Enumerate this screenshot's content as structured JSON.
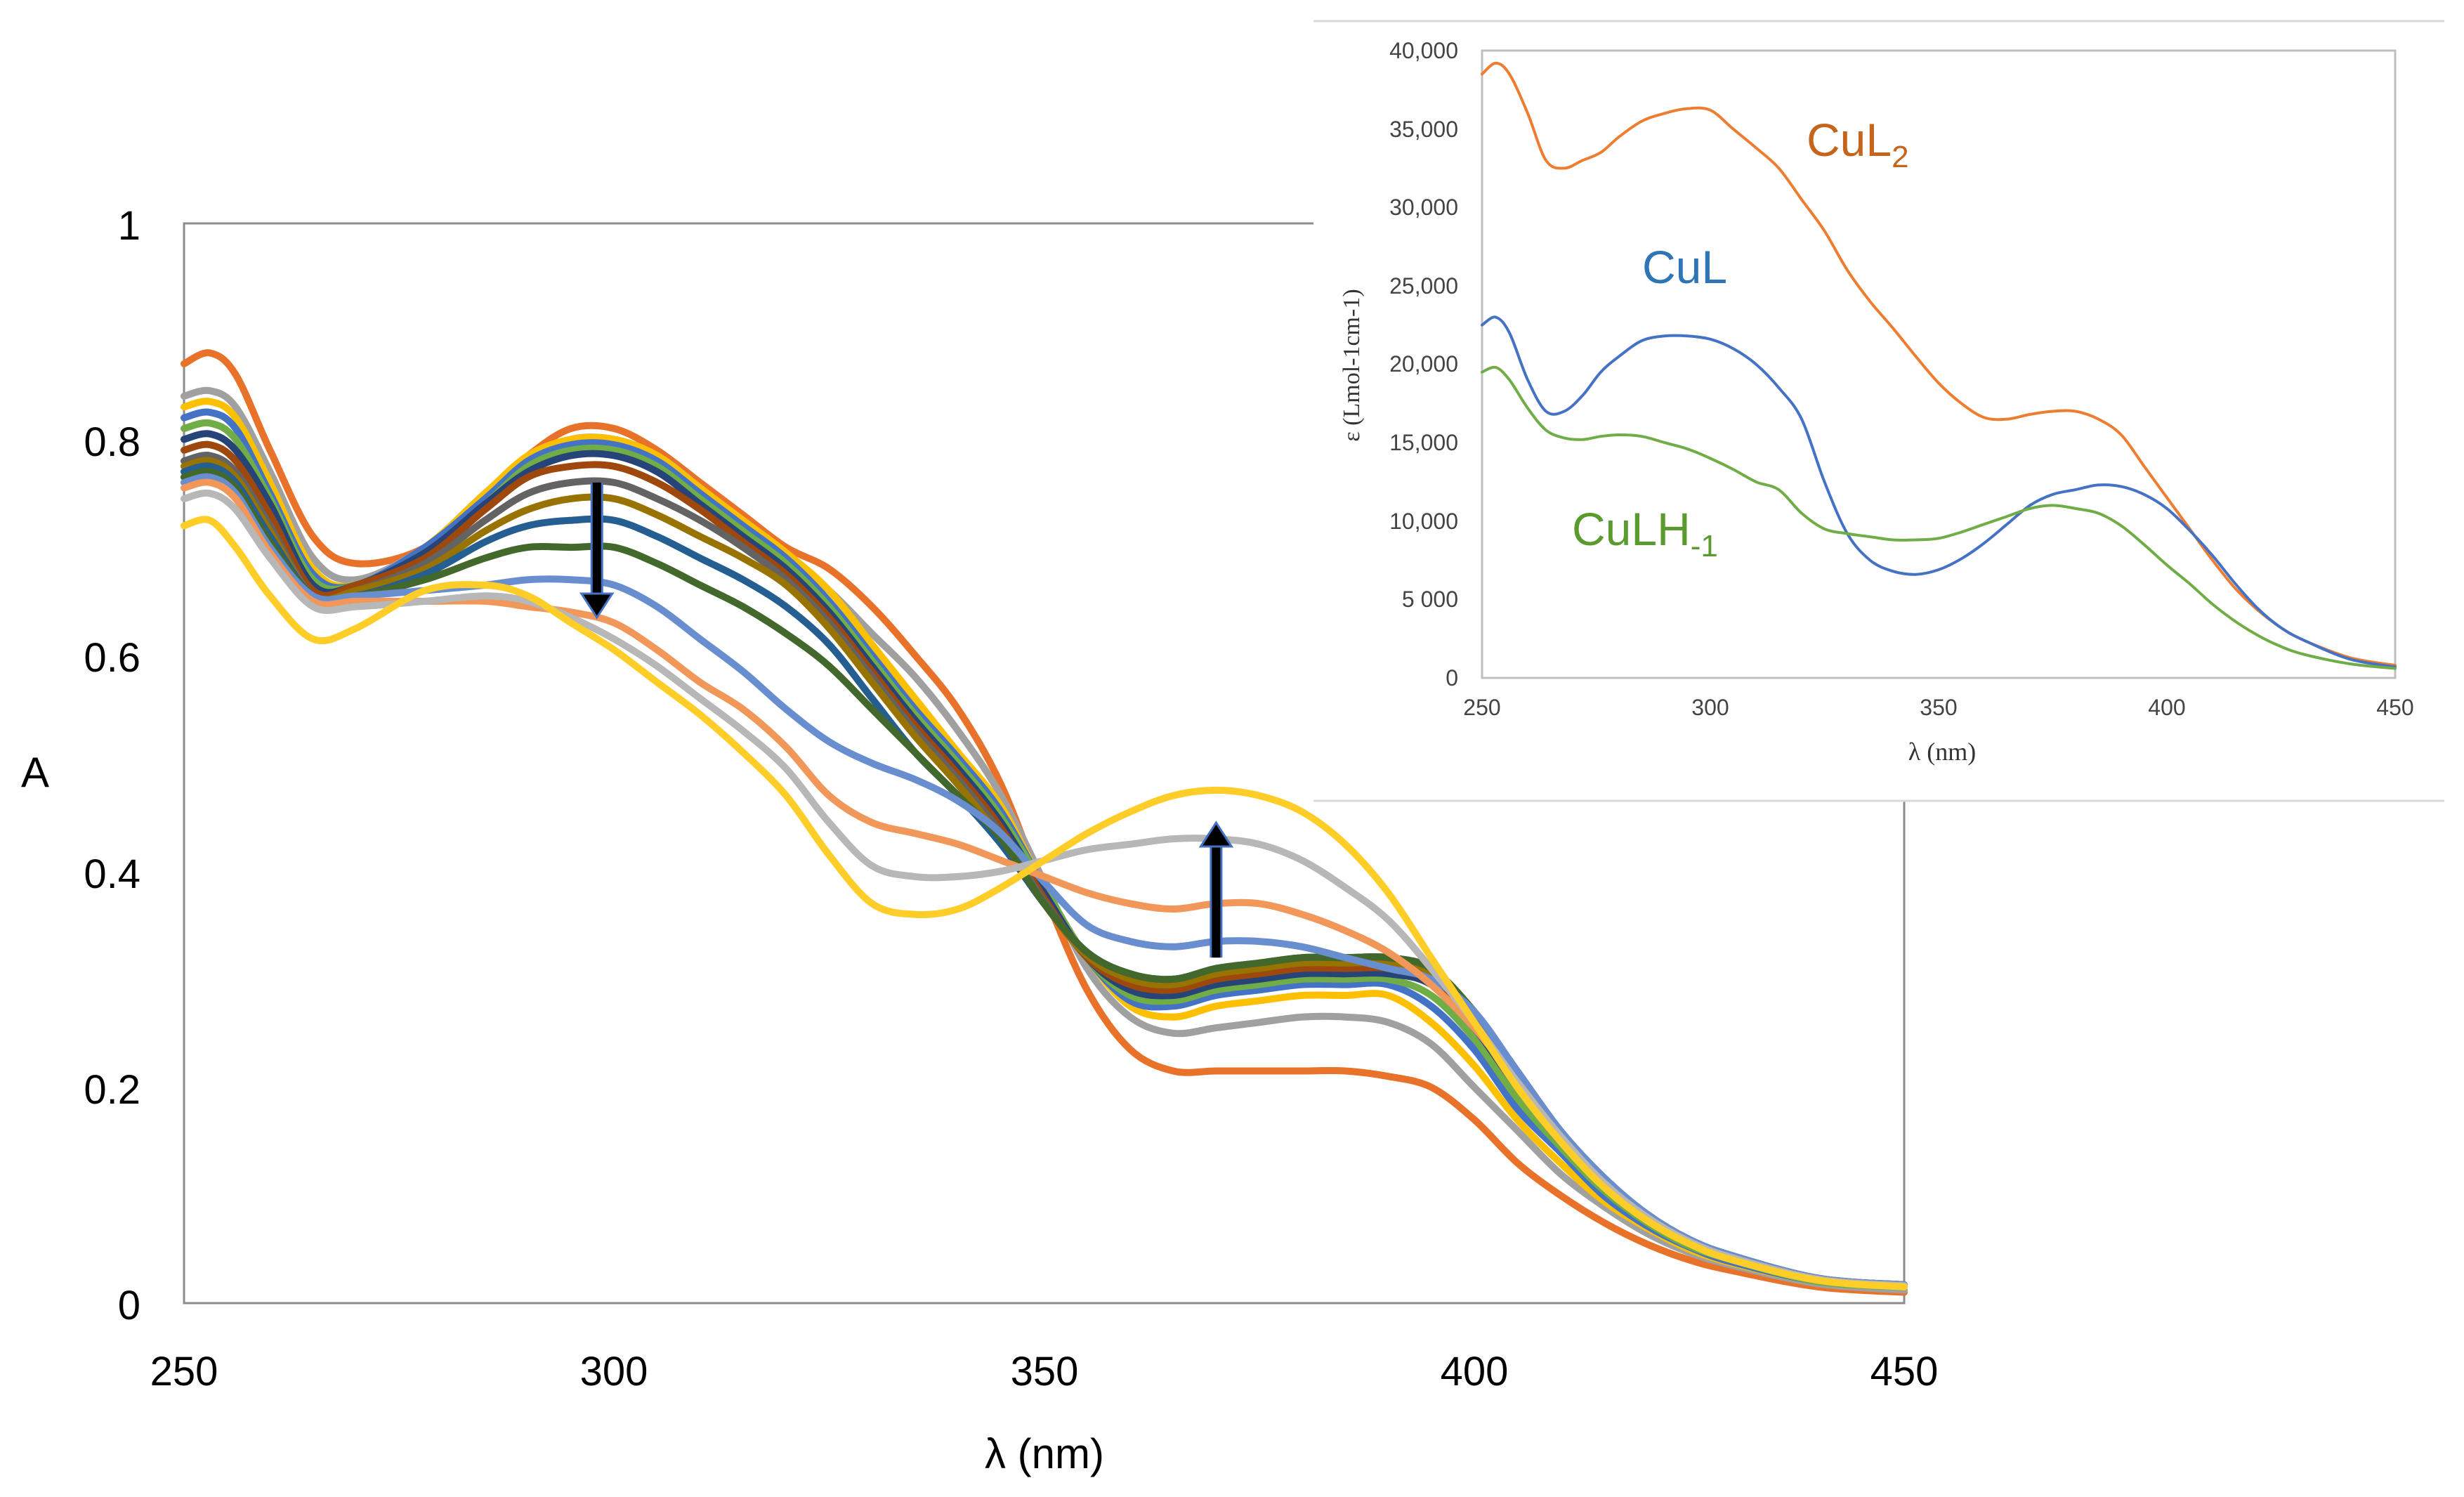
{
  "chart_data": [
    {
      "type": "line",
      "name": "main-titration",
      "title": "",
      "xlabel": "λ (nm)",
      "ylabel": "A",
      "xlim": [
        250,
        450
      ],
      "ylim": [
        0,
        1
      ],
      "x_ticks": [
        "250",
        "300",
        "350",
        "400",
        "450"
      ],
      "y_ticks": [
        "0",
        "0.2",
        "0.4",
        "0.6",
        "0.8",
        "1"
      ],
      "x": [
        250,
        253,
        256,
        260,
        265,
        270,
        278,
        285,
        290,
        295,
        300,
        305,
        310,
        315,
        320,
        325,
        330,
        335,
        340,
        345,
        350,
        355,
        360,
        365,
        370,
        375,
        380,
        385,
        390,
        395,
        400,
        405,
        410,
        415,
        420,
        425,
        430,
        440,
        450
      ],
      "series": [
        {
          "name": "s1",
          "color": "#e8722a",
          "values": [
            0.87,
            0.88,
            0.86,
            0.79,
            0.71,
            0.685,
            0.7,
            0.75,
            0.785,
            0.81,
            0.81,
            0.79,
            0.76,
            0.73,
            0.7,
            0.68,
            0.645,
            0.6,
            0.55,
            0.48,
            0.38,
            0.29,
            0.235,
            0.215,
            0.215,
            0.215,
            0.215,
            0.215,
            0.21,
            0.2,
            0.17,
            0.13,
            0.1,
            0.075,
            0.055,
            0.04,
            0.03,
            0.015,
            0.01
          ]
        },
        {
          "name": "s2",
          "color": "#a0a0a0",
          "values": [
            0.84,
            0.845,
            0.83,
            0.77,
            0.69,
            0.67,
            0.7,
            0.75,
            0.78,
            0.8,
            0.8,
            0.785,
            0.755,
            0.72,
            0.69,
            0.66,
            0.62,
            0.58,
            0.53,
            0.47,
            0.39,
            0.31,
            0.265,
            0.25,
            0.255,
            0.26,
            0.265,
            0.265,
            0.26,
            0.24,
            0.2,
            0.16,
            0.12,
            0.09,
            0.065,
            0.047,
            0.035,
            0.018,
            0.012
          ]
        },
        {
          "name": "s3",
          "color": "#fcc000",
          "values": [
            0.83,
            0.835,
            0.82,
            0.76,
            0.68,
            0.665,
            0.7,
            0.75,
            0.785,
            0.8,
            0.8,
            0.785,
            0.755,
            0.725,
            0.695,
            0.66,
            0.61,
            0.56,
            0.51,
            0.46,
            0.385,
            0.32,
            0.275,
            0.265,
            0.275,
            0.28,
            0.285,
            0.285,
            0.285,
            0.26,
            0.22,
            0.17,
            0.13,
            0.095,
            0.07,
            0.05,
            0.037,
            0.02,
            0.015
          ]
        },
        {
          "name": "s4",
          "color": "#4472c4",
          "values": [
            0.82,
            0.825,
            0.81,
            0.75,
            0.675,
            0.665,
            0.7,
            0.745,
            0.78,
            0.795,
            0.795,
            0.78,
            0.75,
            0.72,
            0.69,
            0.65,
            0.6,
            0.55,
            0.505,
            0.455,
            0.385,
            0.32,
            0.28,
            0.275,
            0.285,
            0.29,
            0.295,
            0.295,
            0.295,
            0.275,
            0.235,
            0.18,
            0.14,
            0.1,
            0.072,
            0.052,
            0.038,
            0.02,
            0.015
          ]
        },
        {
          "name": "s5",
          "color": "#70ad47",
          "values": [
            0.81,
            0.815,
            0.8,
            0.745,
            0.67,
            0.665,
            0.695,
            0.74,
            0.775,
            0.79,
            0.79,
            0.775,
            0.745,
            0.715,
            0.685,
            0.645,
            0.595,
            0.545,
            0.5,
            0.45,
            0.385,
            0.32,
            0.285,
            0.28,
            0.29,
            0.295,
            0.3,
            0.3,
            0.3,
            0.285,
            0.245,
            0.19,
            0.145,
            0.105,
            0.075,
            0.053,
            0.04,
            0.02,
            0.015
          ]
        },
        {
          "name": "s6",
          "color": "#264478",
          "values": [
            0.8,
            0.805,
            0.79,
            0.74,
            0.665,
            0.665,
            0.695,
            0.74,
            0.77,
            0.785,
            0.785,
            0.77,
            0.74,
            0.71,
            0.68,
            0.64,
            0.59,
            0.54,
            0.495,
            0.445,
            0.38,
            0.32,
            0.29,
            0.285,
            0.295,
            0.3,
            0.305,
            0.305,
            0.305,
            0.295,
            0.255,
            0.2,
            0.15,
            0.11,
            0.078,
            0.055,
            0.041,
            0.021,
            0.016
          ]
        },
        {
          "name": "s7",
          "color": "#9e480e",
          "values": [
            0.79,
            0.795,
            0.78,
            0.73,
            0.66,
            0.665,
            0.69,
            0.735,
            0.765,
            0.775,
            0.775,
            0.76,
            0.735,
            0.705,
            0.675,
            0.635,
            0.585,
            0.535,
            0.49,
            0.44,
            0.375,
            0.32,
            0.295,
            0.29,
            0.3,
            0.305,
            0.31,
            0.31,
            0.31,
            0.3,
            0.26,
            0.205,
            0.155,
            0.112,
            0.08,
            0.057,
            0.042,
            0.022,
            0.016
          ]
        },
        {
          "name": "s8",
          "color": "#636363",
          "values": [
            0.78,
            0.785,
            0.77,
            0.72,
            0.655,
            0.66,
            0.685,
            0.725,
            0.75,
            0.76,
            0.76,
            0.745,
            0.725,
            0.7,
            0.67,
            0.63,
            0.58,
            0.53,
            0.485,
            0.435,
            0.372,
            0.322,
            0.3,
            0.295,
            0.305,
            0.31,
            0.315,
            0.315,
            0.315,
            0.305,
            0.265,
            0.21,
            0.158,
            0.115,
            0.082,
            0.058,
            0.043,
            0.022,
            0.016
          ]
        },
        {
          "name": "s9",
          "color": "#997300",
          "values": [
            0.775,
            0.78,
            0.765,
            0.715,
            0.655,
            0.66,
            0.68,
            0.715,
            0.735,
            0.745,
            0.745,
            0.73,
            0.71,
            0.69,
            0.665,
            0.625,
            0.575,
            0.525,
            0.48,
            0.43,
            0.37,
            0.322,
            0.3,
            0.295,
            0.305,
            0.31,
            0.315,
            0.315,
            0.315,
            0.305,
            0.265,
            0.21,
            0.158,
            0.115,
            0.082,
            0.058,
            0.043,
            0.022,
            0.016
          ]
        },
        {
          "name": "s10",
          "color": "#255e91",
          "values": [
            0.77,
            0.775,
            0.76,
            0.71,
            0.655,
            0.655,
            0.675,
            0.705,
            0.72,
            0.725,
            0.725,
            0.71,
            0.69,
            0.67,
            0.645,
            0.61,
            0.56,
            0.51,
            0.47,
            0.425,
            0.37,
            0.325,
            0.305,
            0.3,
            0.31,
            0.315,
            0.32,
            0.32,
            0.32,
            0.31,
            0.27,
            0.215,
            0.16,
            0.117,
            0.083,
            0.059,
            0.044,
            0.023,
            0.017
          ]
        },
        {
          "name": "s11",
          "color": "#43682b",
          "values": [
            0.765,
            0.77,
            0.755,
            0.705,
            0.655,
            0.655,
            0.67,
            0.69,
            0.7,
            0.7,
            0.7,
            0.685,
            0.665,
            0.645,
            0.62,
            0.59,
            0.55,
            0.51,
            0.47,
            0.43,
            0.37,
            0.325,
            0.305,
            0.3,
            0.31,
            0.315,
            0.32,
            0.32,
            0.32,
            0.31,
            0.27,
            0.215,
            0.16,
            0.117,
            0.083,
            0.059,
            0.044,
            0.023,
            0.017
          ]
        },
        {
          "name": "s12",
          "color": "#698ed0",
          "values": [
            0.76,
            0.765,
            0.75,
            0.7,
            0.655,
            0.655,
            0.66,
            0.665,
            0.67,
            0.67,
            0.665,
            0.645,
            0.615,
            0.585,
            0.55,
            0.52,
            0.5,
            0.485,
            0.465,
            0.435,
            0.39,
            0.35,
            0.335,
            0.33,
            0.335,
            0.335,
            0.33,
            0.32,
            0.31,
            0.3,
            0.27,
            0.215,
            0.16,
            0.117,
            0.083,
            0.059,
            0.044,
            0.023,
            0.017
          ]
        },
        {
          "name": "s13",
          "color": "#f1975a",
          "values": [
            0.755,
            0.76,
            0.745,
            0.695,
            0.65,
            0.65,
            0.65,
            0.65,
            0.645,
            0.64,
            0.63,
            0.605,
            0.575,
            0.55,
            0.515,
            0.47,
            0.445,
            0.435,
            0.425,
            0.41,
            0.395,
            0.38,
            0.37,
            0.365,
            0.37,
            0.37,
            0.36,
            0.345,
            0.325,
            0.295,
            0.255,
            0.205,
            0.155,
            0.112,
            0.08,
            0.057,
            0.042,
            0.022,
            0.016
          ]
        },
        {
          "name": "s14",
          "color": "#b7b7b7",
          "values": [
            0.745,
            0.75,
            0.735,
            0.69,
            0.645,
            0.645,
            0.65,
            0.655,
            0.65,
            0.635,
            0.615,
            0.59,
            0.56,
            0.53,
            0.495,
            0.445,
            0.405,
            0.395,
            0.395,
            0.4,
            0.41,
            0.42,
            0.425,
            0.43,
            0.43,
            0.425,
            0.41,
            0.385,
            0.355,
            0.31,
            0.26,
            0.205,
            0.155,
            0.112,
            0.08,
            0.057,
            0.042,
            0.022,
            0.016
          ]
        },
        {
          "name": "s15",
          "color": "#ffcd28",
          "values": [
            0.72,
            0.725,
            0.7,
            0.655,
            0.615,
            0.625,
            0.66,
            0.665,
            0.655,
            0.63,
            0.605,
            0.575,
            0.545,
            0.51,
            0.47,
            0.415,
            0.37,
            0.36,
            0.365,
            0.385,
            0.41,
            0.435,
            0.455,
            0.47,
            0.475,
            0.47,
            0.455,
            0.425,
            0.38,
            0.32,
            0.26,
            0.2,
            0.15,
            0.108,
            0.077,
            0.055,
            0.04,
            0.021,
            0.015
          ]
        }
      ],
      "annotations": [
        {
          "type": "arrow",
          "direction": "down",
          "x": 298,
          "from": 0.76,
          "to": 0.635
        },
        {
          "type": "arrow",
          "direction": "up",
          "x": 370,
          "from": 0.32,
          "to": 0.445
        }
      ]
    },
    {
      "type": "line",
      "name": "species-inset",
      "title": "",
      "xlabel": "λ (nm)",
      "ylabel": "ε (Lmol-1cm-1)",
      "xlim": [
        250,
        450
      ],
      "ylim": [
        0,
        40000
      ],
      "x_ticks": [
        "250",
        "300",
        "350",
        "400",
        "450"
      ],
      "y_ticks": [
        "0",
        "5 000",
        "10,000",
        "15,000",
        "20,000",
        "25,000",
        "30,000",
        "35,000",
        "40,000"
      ],
      "x": [
        250,
        253,
        256,
        260,
        264,
        268,
        272,
        276,
        280,
        285,
        290,
        295,
        300,
        305,
        310,
        315,
        320,
        325,
        330,
        335,
        340,
        345,
        350,
        355,
        360,
        365,
        370,
        375,
        380,
        385,
        390,
        395,
        400,
        405,
        410,
        415,
        420,
        425,
        430,
        440,
        450
      ],
      "series": [
        {
          "name": "CuL2",
          "label": "CuL",
          "label_sub": "2",
          "color": "#ed7d31",
          "values": [
            38500,
            39200,
            38500,
            36000,
            33000,
            32500,
            33000,
            33500,
            34500,
            35500,
            36000,
            36300,
            36200,
            35000,
            33800,
            32500,
            30500,
            28500,
            26000,
            24000,
            22300,
            20500,
            18800,
            17500,
            16600,
            16500,
            16800,
            17000,
            17000,
            16500,
            15500,
            13500,
            11500,
            9500,
            7500,
            5700,
            4300,
            3200,
            2400,
            1300,
            800
          ]
        },
        {
          "name": "CuL",
          "label": "CuL",
          "label_sub": "",
          "color": "#4472c4",
          "values": [
            22500,
            23000,
            22000,
            19000,
            17000,
            17000,
            18000,
            19500,
            20500,
            21500,
            21800,
            21800,
            21600,
            21000,
            20000,
            18500,
            16500,
            12500,
            9200,
            7500,
            6800,
            6600,
            6900,
            7600,
            8600,
            9800,
            11000,
            11700,
            12000,
            12300,
            12200,
            11700,
            10800,
            9400,
            7800,
            6000,
            4400,
            3200,
            2400,
            1200,
            700
          ]
        },
        {
          "name": "CuLH-1",
          "label": "CuLH",
          "label_sub": "-1",
          "color": "#70ad47",
          "values": [
            19500,
            19800,
            19000,
            17200,
            15800,
            15300,
            15200,
            15400,
            15500,
            15400,
            15000,
            14600,
            14000,
            13300,
            12500,
            12000,
            10500,
            9500,
            9200,
            9000,
            8800,
            8800,
            8900,
            9300,
            9800,
            10300,
            10800,
            11000,
            10800,
            10500,
            9700,
            8500,
            7200,
            6000,
            4700,
            3600,
            2700,
            2000,
            1500,
            900,
            600
          ]
        }
      ]
    }
  ]
}
